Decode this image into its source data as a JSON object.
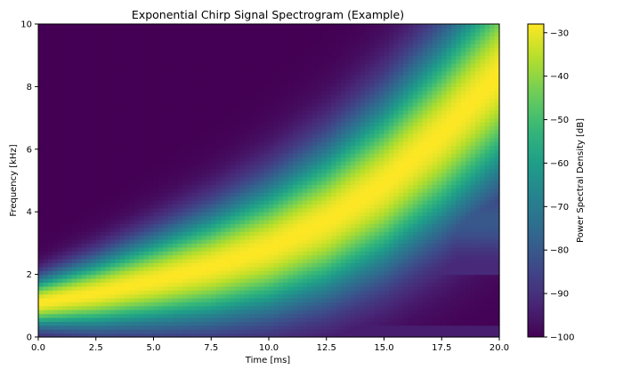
{
  "chart_data": {
    "type": "heatmap",
    "title": "Exponential Chirp Signal Spectrogram (Example)",
    "xlabel": "Time [ms]",
    "ylabel": "Frequency [kHz]",
    "xlim": [
      0,
      20
    ],
    "ylim": [
      0,
      10
    ],
    "xticks": [
      0,
      2.5,
      5,
      7.5,
      10,
      12.5,
      15,
      17.5,
      20
    ],
    "xtick_labels": [
      "0.0",
      "2.5",
      "5.0",
      "7.5",
      "10.0",
      "12.5",
      "15.0",
      "17.5",
      "20.0"
    ],
    "yticks": [
      0,
      2,
      4,
      6,
      8,
      10
    ],
    "ytick_labels": [
      "0",
      "2",
      "4",
      "6",
      "8",
      "10"
    ],
    "colormap": "viridis",
    "colorbar": {
      "label": "Power Spectral Density [dB]",
      "range": [
        -100,
        -28
      ],
      "ticks": [
        -30,
        -40,
        -50,
        -60,
        -70,
        -80,
        -90,
        -100
      ],
      "tick_labels": [
        "−30",
        "−40",
        "−50",
        "−60",
        "−70",
        "−80",
        "−90",
        "−100"
      ]
    },
    "ridge": {
      "time_ms": [
        0,
        2.5,
        5,
        7.5,
        10,
        12.5,
        15,
        17.5,
        20
      ],
      "freq_khz": [
        1.1,
        1.4,
        1.8,
        2.25,
        2.85,
        3.7,
        4.9,
        6.5,
        8.4
      ],
      "peak_db": -28
    },
    "floor_db": -100,
    "grid": false
  }
}
